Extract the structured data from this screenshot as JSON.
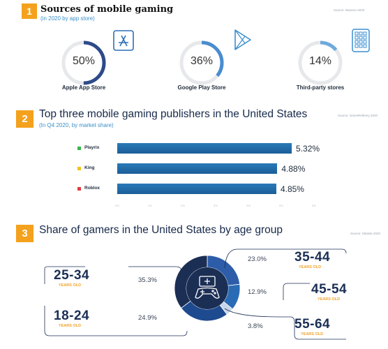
{
  "section1": {
    "number": "1",
    "title": "Sources of mobile gaming",
    "subtitle": "(in 2020 by app store)",
    "source": "Source: Newzoo 2020",
    "stores": [
      {
        "label": "Apple App Store",
        "value": 50,
        "display": "50%",
        "icon": "app-store-icon"
      },
      {
        "label": "Google Play Store",
        "value": 36,
        "display": "36%",
        "icon": "google-play-icon"
      },
      {
        "label": "Third-party stores",
        "value": 14,
        "display": "14%",
        "icon": "app-grid-icon"
      }
    ]
  },
  "section2": {
    "number": "2",
    "title": "Top three mobile gaming publishers in the United States",
    "subtitle": "(In Q4 2020, by market share)",
    "source": "Source: GameRefinery 2020"
  },
  "section3": {
    "number": "3",
    "title": "Share of gamers in the United States by age group",
    "source": "Source: Statista 2020",
    "years_old": "YEARS OLD"
  },
  "colors": {
    "accent": "#f4a11d",
    "navy": "#1b2f55",
    "blue": "#2a7ab8",
    "ring_track": "#e6e8eb",
    "playrix": "#3bb54a",
    "king": "#f4c11d",
    "roblox": "#e23b3b"
  },
  "chart_data": [
    {
      "type": "pie",
      "categories": [
        "Apple App Store",
        "Google Play Store",
        "Third-party stores"
      ],
      "values": [
        50,
        36,
        14
      ],
      "title": "Sources of mobile gaming"
    },
    {
      "type": "bar",
      "categories": [
        "Playrix",
        "King",
        "Roblox"
      ],
      "values": [
        5.32,
        4.88,
        4.85
      ],
      "value_labels": [
        "5.32%",
        "4.88%",
        "4.85%"
      ],
      "xlim": [
        0,
        6
      ],
      "xticks": [
        "0%",
        "1%",
        "2%",
        "3%",
        "4%",
        "5%",
        "6%"
      ],
      "title": "Top three mobile gaming publishers in the United States"
    },
    {
      "type": "pie",
      "categories": [
        "35-44",
        "45-54",
        "55-64",
        "18-24",
        "25-34"
      ],
      "values": [
        23.0,
        12.9,
        3.8,
        24.9,
        35.3
      ],
      "value_labels": [
        "23.0%",
        "12.9%",
        "3.8%",
        "24.9%",
        "35.3%"
      ],
      "title": "Share of gamers in the United States by age group"
    }
  ]
}
